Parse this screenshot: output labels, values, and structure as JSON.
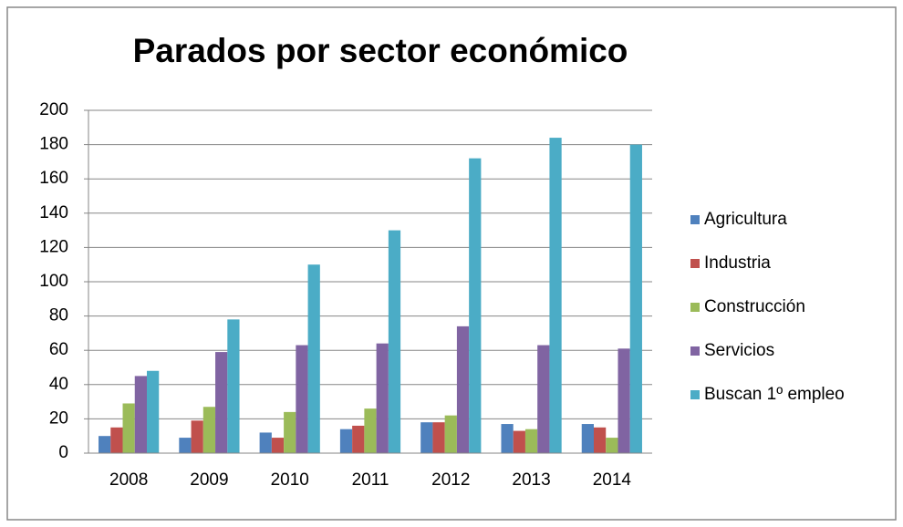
{
  "chart_data": {
    "type": "bar",
    "title": "Parados por sector económico",
    "categories": [
      "2008",
      "2009",
      "2010",
      "2011",
      "2012",
      "2013",
      "2014"
    ],
    "series": [
      {
        "name": "Agricultura",
        "color": "#4f81bd",
        "values": [
          10,
          9,
          12,
          14,
          18,
          17,
          17
        ]
      },
      {
        "name": "Industria",
        "color": "#c0504d",
        "values": [
          15,
          19,
          9,
          16,
          18,
          13,
          15
        ]
      },
      {
        "name": "Construcción",
        "color": "#9bbb59",
        "values": [
          29,
          27,
          24,
          26,
          22,
          14,
          9
        ]
      },
      {
        "name": "Servicios",
        "color": "#8064a2",
        "values": [
          45,
          59,
          63,
          64,
          74,
          63,
          61
        ]
      },
      {
        "name": "Buscan 1º empleo",
        "color": "#4bacc6",
        "values": [
          48,
          78,
          110,
          130,
          172,
          184,
          180
        ]
      }
    ],
    "ylim": [
      0,
      200
    ],
    "yticks": [
      0,
      20,
      40,
      60,
      80,
      100,
      120,
      140,
      160,
      180,
      200
    ],
    "grid": true,
    "legend": "right"
  }
}
